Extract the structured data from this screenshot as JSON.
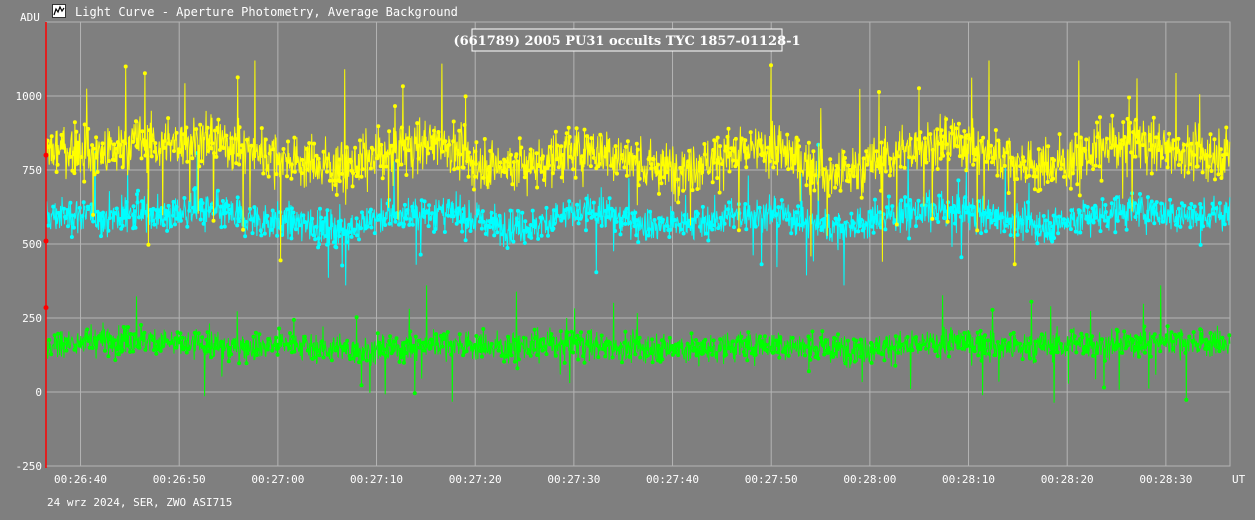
{
  "window": {
    "title": "Light Curve - Aperture Photometry, Average Background",
    "icon": "light-curve-app-icon"
  },
  "footer": {
    "note": "24 wrz 2024, SER, ZWO ASI715"
  },
  "colors": {
    "background": "#7f7f7f",
    "grid": "#b4b4b4",
    "series_yellow": "#ffff00",
    "series_cyan": "#00ffff",
    "series_green": "#00ff00",
    "marker_red": "#ff0000"
  },
  "chart_data": {
    "type": "line",
    "title": "(661789) 2005 PU31 occults TYC 1857-01128-1",
    "ylabel": "ADU",
    "xlabel": "UT",
    "ylim": [
      -250,
      1250
    ],
    "yticks": [
      -250,
      0,
      250,
      500,
      750,
      1000
    ],
    "ytick_labels": [
      "-250",
      "0",
      "250",
      "500",
      "750",
      "1000"
    ],
    "x_start_time": "00:26:36.5",
    "x_end_time": "00:28:36.5",
    "xticks": [
      "00:26:40",
      "00:26:50",
      "00:27:00",
      "00:27:10",
      "00:27:20",
      "00:27:30",
      "00:27:40",
      "00:27:50",
      "00:28:00",
      "00:28:10",
      "00:28:20",
      "00:28:30"
    ],
    "grid": true,
    "series": [
      {
        "color": "#ffff00",
        "samples": 2400,
        "baseline_adu": 800,
        "typical_range_adu": [
          650,
          950
        ],
        "peak_adu": 1120,
        "values_sampled": [
          815,
          820,
          805,
          845,
          830,
          860,
          840,
          810,
          790,
          765,
          760,
          800,
          830,
          850,
          780,
          760,
          770,
          800,
          820,
          790,
          750,
          760,
          790,
          810,
          820,
          770,
          730,
          760,
          800,
          840,
          850,
          810,
          780,
          760,
          790,
          830,
          850,
          820,
          800,
          810
        ]
      },
      {
        "color": "#00ffff",
        "samples": 2400,
        "baseline_adu": 600,
        "typical_range_adu": [
          500,
          700
        ],
        "min_adu": 360,
        "values_sampled": [
          590,
          600,
          585,
          610,
          595,
          615,
          605,
          580,
          575,
          560,
          555,
          590,
          600,
          610,
          585,
          560,
          555,
          595,
          610,
          585,
          560,
          570,
          580,
          600,
          605,
          580,
          555,
          575,
          600,
          610,
          615,
          600,
          575,
          560,
          585,
          605,
          615,
          600,
          590,
          600
        ]
      },
      {
        "color": "#00ff00",
        "samples": 2400,
        "baseline_adu": 150,
        "typical_range_adu": [
          70,
          240
        ],
        "peak_adu": 360,
        "min_adu": -90,
        "values_sampled": [
          160,
          170,
          175,
          180,
          165,
          160,
          150,
          155,
          165,
          150,
          140,
          145,
          150,
          170,
          160,
          150,
          155,
          165,
          160,
          150,
          150,
          145,
          150,
          155,
          160,
          150,
          145,
          150,
          155,
          160,
          170,
          160,
          150,
          155,
          165,
          160,
          165,
          175,
          170,
          165
        ]
      }
    ],
    "start_markers_adu": [
      800,
      510,
      285
    ]
  }
}
